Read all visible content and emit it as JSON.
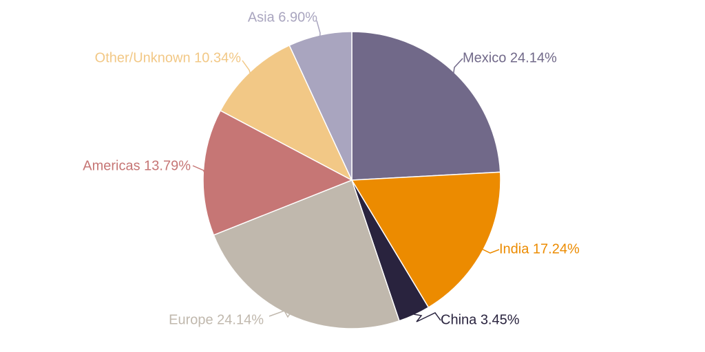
{
  "chart_data": {
    "type": "pie",
    "title": "",
    "slices": [
      {
        "label": "Mexico 24.14%",
        "name": "Mexico",
        "value": 24.14,
        "color": "#716989",
        "label_color": "#716989"
      },
      {
        "label": "India 17.24%",
        "name": "India",
        "value": 17.24,
        "color": "#ec8b00",
        "label_color": "#ec8b00"
      },
      {
        "label": "China 3.45%",
        "name": "China",
        "value": 3.45,
        "color": "#29233e",
        "label_color": "#29233e"
      },
      {
        "label": "Europe 24.14%",
        "name": "Europe",
        "value": 24.14,
        "color": "#c0b8ad",
        "label_color": "#c0b8ad"
      },
      {
        "label": "Americas 13.79%",
        "name": "Americas",
        "value": 13.79,
        "color": "#c67675",
        "label_color": "#c67675"
      },
      {
        "label": "Other/Unknown 10.34%",
        "name": "Other/Unknown",
        "value": 10.34,
        "color": "#f2c886",
        "label_color": "#f2c886"
      },
      {
        "label": "Asia 6.90%",
        "name": "Asia",
        "value": 6.9,
        "color": "#a9a5bf",
        "label_color": "#a9a5bf"
      }
    ],
    "start_angle": "12 o'clock",
    "direction": "clockwise",
    "legend": "none"
  }
}
